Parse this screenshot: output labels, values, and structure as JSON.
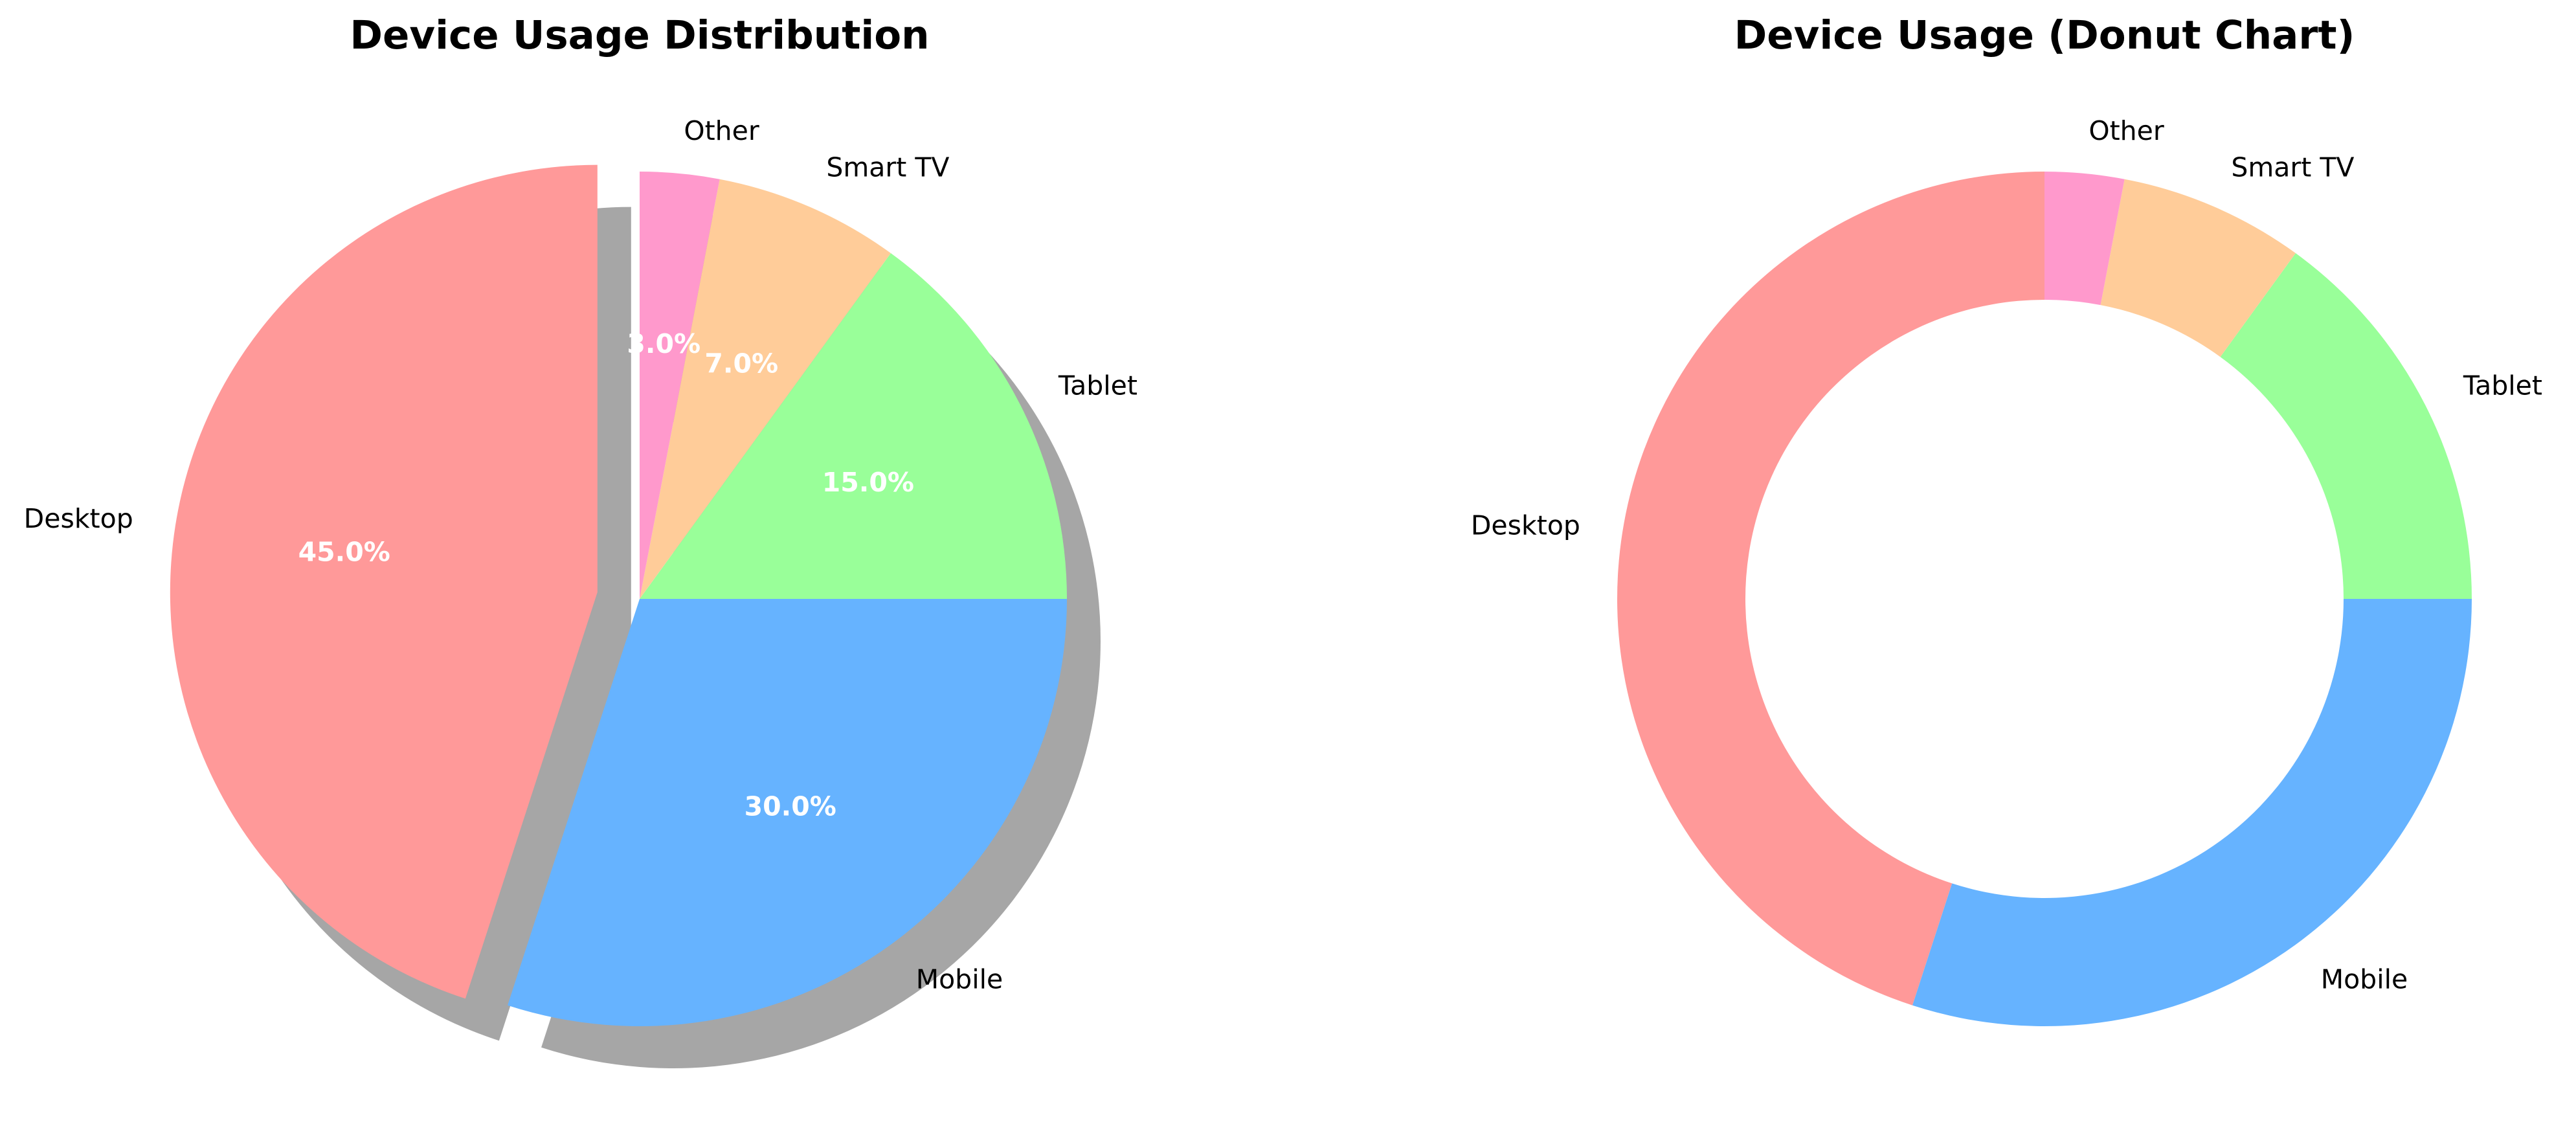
{
  "chart_data": [
    {
      "type": "pie",
      "title": "Device Usage Distribution",
      "categories": [
        "Desktop",
        "Mobile",
        "Tablet",
        "Smart TV",
        "Other"
      ],
      "values": [
        45.0,
        30.0,
        15.0,
        7.0,
        3.0
      ],
      "percent_labels": [
        "45.0%",
        "30.0%",
        "15.0%",
        "7.0%",
        "3.0%"
      ],
      "colors": [
        "#ff9999",
        "#66b3ff",
        "#99ff99",
        "#ffcc99",
        "#ff99cc"
      ],
      "exploded": "Desktop",
      "shadow": true,
      "start_angle_deg": 90,
      "direction": "counterclockwise"
    },
    {
      "type": "pie",
      "title": "Device Usage (Donut Chart)",
      "categories": [
        "Desktop",
        "Mobile",
        "Tablet",
        "Smart TV",
        "Other"
      ],
      "values": [
        45.0,
        30.0,
        15.0,
        7.0,
        3.0
      ],
      "colors": [
        "#ff9999",
        "#66b3ff",
        "#99ff99",
        "#ffcc99",
        "#ff99cc"
      ],
      "donut": true,
      "start_angle_deg": 90,
      "direction": "counterclockwise"
    }
  ]
}
